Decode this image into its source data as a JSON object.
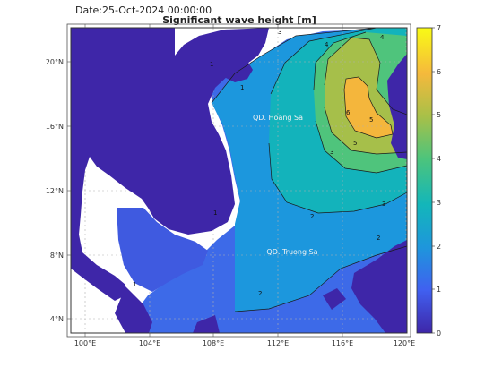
{
  "header": {
    "date_label": "Date:25-Oct-2024 00:00:00",
    "title": "Significant wave height [m]"
  },
  "map": {
    "lon_ticks": [
      "100°E",
      "104°E",
      "108°E",
      "112°E",
      "116°E",
      "120°E"
    ],
    "lat_ticks": [
      "4°N",
      "8°N",
      "12°N",
      "16°N",
      "20°N"
    ],
    "place_labels": [
      "QD. Hoang Sa",
      "QD. Truong Sa"
    ],
    "contour_labels": [
      "1",
      "1",
      "1",
      "1",
      "2",
      "2",
      "2",
      "3",
      "3",
      "3",
      "4",
      "4",
      "5",
      "5",
      "6"
    ]
  },
  "colorbar": {
    "ticks": [
      "0",
      "1",
      "2",
      "3",
      "4",
      "5",
      "6",
      "7"
    ],
    "colors": [
      "#3e26a8",
      "#4060f0",
      "#1e96dc",
      "#13b6ba",
      "#4cc47c",
      "#a8c048",
      "#f5b93c",
      "#f9fb15"
    ]
  }
}
